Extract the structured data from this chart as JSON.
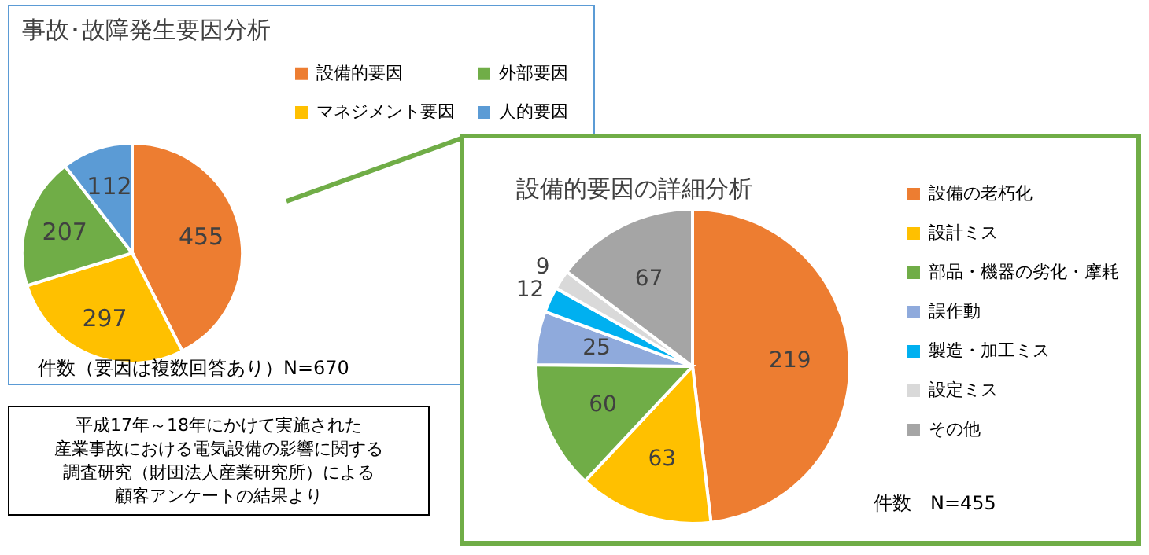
{
  "chart_data": [
    {
      "type": "pie",
      "title": "事故･故障発生要因分析",
      "categories": [
        "設備的要因",
        "マネジメント要因",
        "外部要因",
        "人的要因"
      ],
      "values": [
        455,
        297,
        207,
        112
      ],
      "colors": [
        "#ed7d31",
        "#ffc000",
        "#70ad47",
        "#5b9bd5"
      ],
      "data_labels": true,
      "legend": "top right",
      "annotations": [
        "件数（要因は複数回答あり）N=670"
      ]
    },
    {
      "type": "pie",
      "title": "設備的要因の詳細分析",
      "categories": [
        "設備の老朽化",
        "設計ミス",
        "部品・機器の劣化・摩耗",
        "誤作動",
        "製造・加工ミス",
        "設定ミス",
        "その他"
      ],
      "values": [
        219,
        63,
        60,
        25,
        12,
        9,
        67
      ],
      "colors": [
        "#ed7d31",
        "#ffc000",
        "#70ad47",
        "#8faadc",
        "#00b0f0",
        "#d9d9d9",
        "#a5a5a5"
      ],
      "data_labels": true,
      "legend": "right",
      "annotations": [
        "件数　N=455"
      ]
    },
    {
      "type": "other",
      "annotations": [
        "平成17年～18年にかけて実施された",
        "産業事故における電気設備の影響に関する",
        "調査研究（財団法人産業研究所）による",
        "顧客アンケートの結果より"
      ]
    }
  ]
}
